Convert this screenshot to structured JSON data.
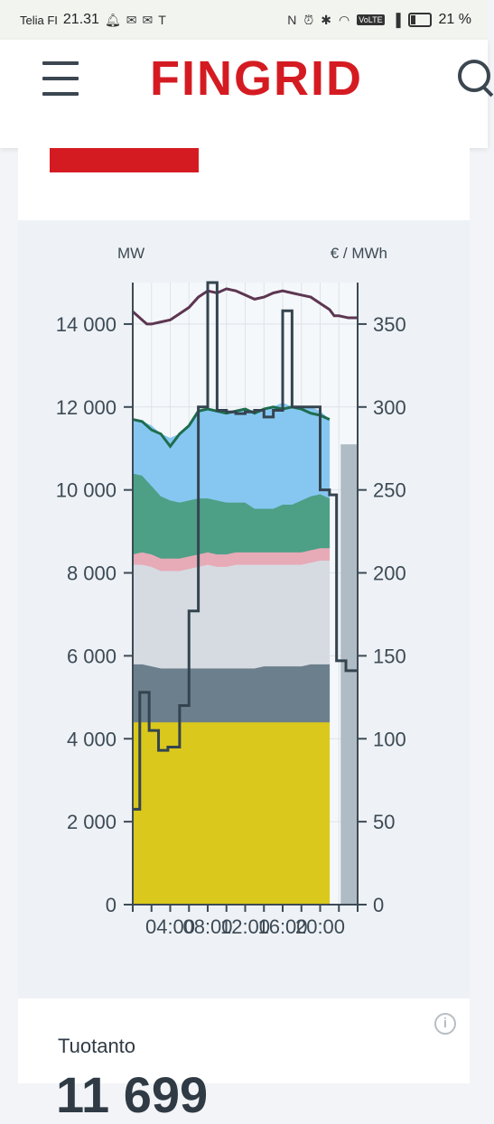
{
  "status_bar": {
    "carrier": "Telia FI",
    "time": "21.31",
    "left_icons": [
      "bell-icon",
      "mail-icon",
      "mail-icon",
      "tesla-icon"
    ],
    "right_icons": [
      "nfc-icon",
      "alarm-icon",
      "bluetooth-icon",
      "wifi-icon",
      "volte-icon",
      "signal-icon",
      "battery-icon"
    ],
    "volte": "VoLTE",
    "battery": "21 %"
  },
  "header": {
    "logo": "FINGRID",
    "menu_icon": "hamburger-menu-icon",
    "search_icon": "search-icon"
  },
  "colors": {
    "brand_red": "#d51b22",
    "nuclear": "#dac81c",
    "band_dark": "#6c7f8c",
    "band_light": "#d6dbe2",
    "band_pink": "#e7aab7",
    "band_green": "#4d9f86",
    "band_blue": "#86c7f1",
    "total_line": "#1e6d4e",
    "price_line": "#34444f",
    "purple_line": "#5d3651",
    "forecast_bar": "#b0bcc5"
  },
  "chart_data": {
    "type": "area",
    "left_axis_label": "MW",
    "right_axis_label": "€ / MWh",
    "left_ylim": [
      0,
      15000
    ],
    "left_ticks": [
      0,
      2000,
      4000,
      6000,
      8000,
      10000,
      12000,
      14000
    ],
    "left_tick_labels": [
      "0",
      "2 000",
      "4 000",
      "6 000",
      "8 000",
      "10 000",
      "12 000",
      "14 000"
    ],
    "right_ylim": [
      0,
      375
    ],
    "right_ticks": [
      0,
      50,
      100,
      150,
      200,
      250,
      300,
      350
    ],
    "right_tick_labels": [
      "0",
      "50",
      "100",
      "150",
      "200",
      "250",
      "300",
      "350"
    ],
    "x_range_hours": [
      0,
      24
    ],
    "x_ticks": [
      4,
      8,
      12,
      16,
      20
    ],
    "x_tick_labels": [
      "04:00",
      "08:00",
      "12:00",
      "16:00",
      "20:00"
    ],
    "grid": true,
    "stacked_bands_hours": [
      0,
      1,
      2,
      3,
      4,
      5,
      6,
      7,
      8,
      9,
      10,
      11,
      12,
      13,
      14,
      15,
      16,
      17,
      18,
      19,
      20,
      21
    ],
    "stacked_bands_mw": [
      {
        "values": [
          4400,
          4400,
          4400,
          4400,
          4400,
          4400,
          4400,
          4400,
          4400,
          4400,
          4400,
          4400,
          4400,
          4400,
          4400,
          4400,
          4400,
          4400,
          4400,
          4400,
          4400,
          4400
        ]
      },
      {
        "values": [
          1400,
          1400,
          1350,
          1300,
          1300,
          1300,
          1300,
          1300,
          1300,
          1300,
          1300,
          1300,
          1300,
          1300,
          1350,
          1350,
          1350,
          1350,
          1350,
          1400,
          1400,
          1400
        ]
      },
      {
        "values": [
          2400,
          2400,
          2400,
          2350,
          2350,
          2350,
          2400,
          2450,
          2500,
          2450,
          2450,
          2500,
          2500,
          2500,
          2450,
          2450,
          2450,
          2450,
          2450,
          2450,
          2500,
          2500
        ]
      },
      {
        "values": [
          250,
          300,
          300,
          300,
          300,
          300,
          300,
          300,
          300,
          300,
          300,
          300,
          300,
          300,
          300,
          300,
          300,
          300,
          300,
          300,
          300,
          300
        ]
      },
      {
        "values": [
          1950,
          1850,
          1650,
          1500,
          1400,
          1350,
          1350,
          1350,
          1300,
          1300,
          1250,
          1200,
          1200,
          1050,
          1050,
          1050,
          1150,
          1150,
          1250,
          1300,
          1300,
          1200
        ]
      },
      {
        "values": [
          1300,
          1300,
          1450,
          1500,
          1500,
          1650,
          1800,
          2100,
          2150,
          2150,
          2150,
          2200,
          2250,
          2350,
          2400,
          2450,
          2450,
          2350,
          2250,
          2150,
          2000,
          1900
        ]
      }
    ],
    "total_line_mw": [
      11700,
      11650,
      11450,
      11350,
      11050,
      11350,
      11550,
      11900,
      11950,
      11900,
      11850,
      11900,
      11950,
      11850,
      11950,
      12000,
      11950,
      12000,
      11950,
      11850,
      11800,
      11700
    ],
    "purple_line_hours": [
      0,
      1,
      1.5,
      2,
      3,
      4,
      5,
      6,
      7,
      8,
      9,
      10,
      11,
      12,
      13,
      14,
      15,
      16,
      17,
      18,
      19,
      20,
      21,
      21.5,
      22,
      23,
      24
    ],
    "purple_line_mw": [
      14300,
      14100,
      14000,
      14000,
      14050,
      14100,
      14250,
      14400,
      14650,
      14800,
      14750,
      14850,
      14800,
      14700,
      14600,
      14650,
      14750,
      14800,
      14750,
      14700,
      14650,
      14500,
      14350,
      14200,
      14200,
      14150,
      14150
    ],
    "price_step_hours": [
      0,
      0.75,
      1.75,
      2.75,
      3.75,
      5,
      6,
      7,
      8,
      9,
      10,
      11,
      12,
      13,
      14,
      15,
      16,
      17,
      18,
      19,
      20,
      21,
      21.75,
      22.75,
      23.75
    ],
    "price_step_eur_mwh": [
      57.5,
      128,
      105,
      93,
      95,
      120,
      177,
      300,
      375,
      298,
      297,
      296,
      297,
      298,
      294,
      298,
      358,
      300,
      300,
      300,
      250,
      247,
      147,
      141,
      141
    ],
    "forecast_bar_hours": [
      22,
      24
    ],
    "forecast_bar_mw": 11100
  },
  "production": {
    "label": "Tuotanto",
    "value": "11 699"
  },
  "info_icon": "i"
}
